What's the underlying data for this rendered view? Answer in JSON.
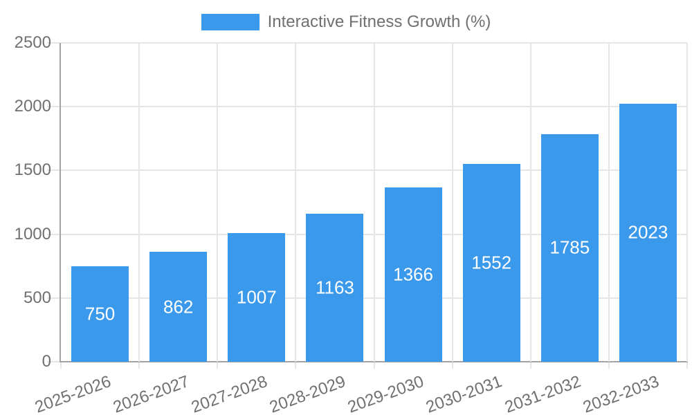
{
  "chart_data": {
    "type": "bar",
    "title": "Interactive Fitness Growth (%)",
    "legend_position": "top",
    "categories": [
      "2025-2026",
      "2026-2027",
      "2027-2028",
      "2028-2029",
      "2029-2030",
      "2030-2031",
      "2031-2032",
      "2032-2033"
    ],
    "series": [
      {
        "name": "Interactive Fitness Growth (%)",
        "values": [
          750,
          862,
          1007,
          1163,
          1366,
          1552,
          1785,
          2023
        ]
      }
    ],
    "value_labels_shown": true,
    "xlabel": "",
    "ylabel": "",
    "ylim": [
      0,
      2500
    ],
    "yticks": [
      0,
      500,
      1000,
      1500,
      2000,
      2500
    ],
    "grid": true,
    "colors": {
      "bar": "#3B99EB",
      "grid": "#E6E6E6",
      "axis_line": "#A3A3A3",
      "axis_text": "#707070",
      "value_text": "#FFFFFF",
      "background": "#FFFFFF"
    }
  }
}
